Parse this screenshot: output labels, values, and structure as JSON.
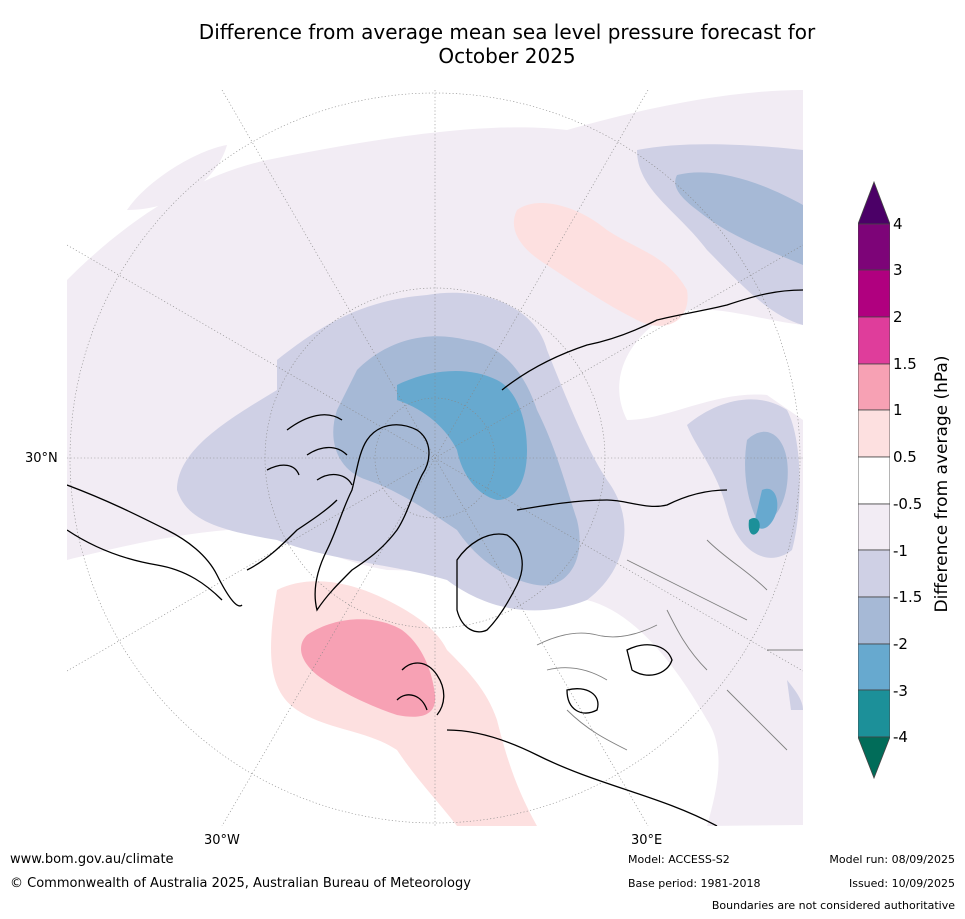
{
  "title_line1": "Difference from average mean sea level pressure forecast for",
  "title_line2": "October 2025",
  "map": {
    "labels": {
      "lat30": "30°N",
      "lon30w": "30°W",
      "lon30e": "30°E"
    },
    "colors": {
      "ocean": "#ffffff",
      "graticule": "#888888",
      "coast": "#000000",
      "border": "#808080"
    }
  },
  "colorbar": {
    "title": "Difference from average (hPa)",
    "ticks": [
      "4",
      "3",
      "2",
      "1.5",
      "1",
      "0.5",
      "-0.5",
      "-1",
      "-1.5",
      "-2",
      "-3",
      "-4"
    ],
    "colors": {
      "above4": "#4b0067",
      "3to4": "#7d0478",
      "2to3": "#b0007f",
      "1.5to2": "#df3d9b",
      "1to1.5": "#f7a1b4",
      "0.5to1": "#fde0e0",
      "-0.5to0.5": "#ffffff",
      "-1to-0.5": "#f2ecf4",
      "-1.5to-1": "#cfd0e5",
      "-2to-1.5": "#a6b9d6",
      "-3to-2": "#67a9cf",
      "-4to-3": "#1c9099",
      "below-4": "#016c59"
    }
  },
  "footer": {
    "url": "www.bom.gov.au/climate",
    "copyright": "© Commonwealth of Australia 2025, Australian Bureau of Meteorology",
    "model": "Model: ACCESS-S2",
    "base_period": "Base period: 1981-2018",
    "model_run": "Model run: 08/09/2025",
    "issued": "Issued: 10/09/2025",
    "disclaimer": "Boundaries are not considered authoritative"
  }
}
